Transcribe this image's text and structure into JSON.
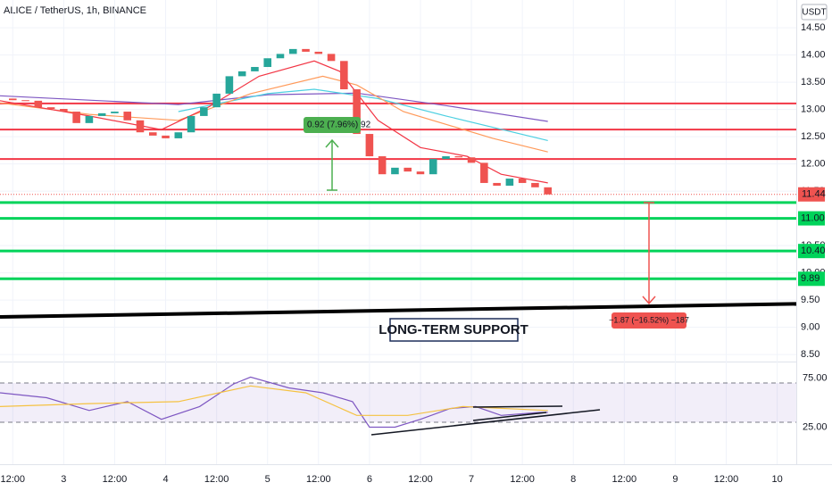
{
  "chart_data": {
    "type": "candlestick",
    "title": "ALICE / TetherUS, 1h, BINANCE",
    "currency": "USDT",
    "x": [
      9,
      12,
      15,
      18,
      21,
      24,
      27,
      30,
      33,
      36,
      39,
      42,
      45,
      48,
      51,
      54,
      57,
      60,
      63,
      66,
      69,
      72,
      75,
      78,
      81,
      84,
      87,
      90,
      93,
      96,
      99,
      102,
      105,
      108,
      111,
      114,
      117,
      120,
      123,
      126,
      129,
      132,
      135,
      138
    ],
    "values": [
      13.2,
      13.17,
      13.16,
      13.04,
      13.01,
      12.96,
      12.75,
      12.88,
      12.93,
      12.96,
      12.8,
      12.58,
      12.52,
      12.47,
      12.58,
      12.88,
      13.04,
      13.29,
      13.61,
      13.7,
      13.78,
      13.94,
      14.02,
      14.11,
      14.06,
      14.02,
      13.89,
      13.37,
      12.55,
      12.14,
      11.81,
      11.93,
      11.86,
      11.81,
      12.09,
      12.14,
      12.12,
      12.02,
      11.65,
      11.6,
      11.73,
      11.65,
      11.57,
      11.44
    ],
    "up_color": "#26a69a",
    "down_color": "#ef5350",
    "xlim": [
      9,
      196.5
    ],
    "xticks": [
      {
        "value": 12,
        "label": "12:00"
      },
      {
        "value": 24,
        "label": "3"
      },
      {
        "value": 36,
        "label": "12:00"
      },
      {
        "value": 48,
        "label": "4"
      },
      {
        "value": 60,
        "label": "12:00"
      },
      {
        "value": 72,
        "label": "5"
      },
      {
        "value": 84,
        "label": "12:00"
      },
      {
        "value": 96,
        "label": "6"
      },
      {
        "value": 108,
        "label": "12:00"
      },
      {
        "value": 120,
        "label": "7"
      },
      {
        "value": 132,
        "label": "12:00"
      },
      {
        "value": 144,
        "label": "8"
      },
      {
        "value": 156,
        "label": "12:00"
      },
      {
        "value": 168,
        "label": "9"
      },
      {
        "value": 180,
        "label": "12:00"
      },
      {
        "value": 192,
        "label": "10"
      }
    ],
    "ylim": [
      8.37,
      15.01
    ],
    "yticks": [
      {
        "value": 14.5,
        "label": "14.50"
      },
      {
        "value": 14,
        "label": "14.00"
      },
      {
        "value": 13.5,
        "label": "13.50"
      },
      {
        "value": 13,
        "label": "13.00"
      },
      {
        "value": 12.5,
        "label": "12.50"
      },
      {
        "value": 12,
        "label": "12.00"
      },
      {
        "value": 11.5,
        "label": "11.50"
      },
      {
        "value": 11,
        "label": "11.00"
      },
      {
        "value": 10.5,
        "label": "10.50"
      },
      {
        "value": 10,
        "label": "10.00"
      },
      {
        "value": 9.5,
        "label": "9.50"
      },
      {
        "value": 9,
        "label": "9.00"
      },
      {
        "value": 8.5,
        "label": "8.50"
      }
    ],
    "last_price": 11.44,
    "resistance_lines": [
      13.11,
      12.63,
      12.09
    ],
    "resistance_color": "#f23645",
    "support_lines": [
      {
        "value": 11.29
      },
      {
        "value": 11.0,
        "label": "11.00"
      },
      {
        "value": 10.4,
        "label": "10.40"
      },
      {
        "value": 9.89,
        "label": "9.89"
      }
    ],
    "support_color": "#00d35a",
    "long_term_support": {
      "start": 9.19,
      "end": 9.43,
      "label": "LONG-TERM SUPPORT"
    },
    "moving_averages": [
      {
        "color": "#7e57c2",
        "x": [
          9,
          30,
          51,
          72,
          93,
          114,
          138
        ],
        "values": [
          13.25,
          13.17,
          13.09,
          13.27,
          13.3,
          13.07,
          12.78
        ]
      },
      {
        "color": "#4dd0e1",
        "x": [
          51,
          72,
          83,
          98,
          114,
          138
        ],
        "values": [
          12.96,
          13.29,
          13.37,
          13.2,
          12.88,
          12.43
        ]
      },
      {
        "color": "#ff9a5a",
        "x": [
          9,
          30,
          51,
          68,
          85,
          93,
          104,
          125,
          138
        ],
        "values": [
          13.12,
          12.91,
          12.8,
          13.29,
          13.61,
          13.45,
          12.96,
          12.47,
          12.22
        ]
      },
      {
        "color": "#f23645",
        "x": [
          9,
          30,
          47,
          58,
          70,
          83,
          89,
          98,
          108,
          119,
          127,
          138
        ],
        "values": [
          13.16,
          12.88,
          12.63,
          13.04,
          13.61,
          13.89,
          13.7,
          12.8,
          12.3,
          12.14,
          11.81,
          11.65
        ]
      }
    ],
    "measure_up": "0.92 (7.96%) 92",
    "measure_down": "−1.87 (−16.52%) −187",
    "rsi": {
      "ylim": [
        91.8,
        -12.7
      ],
      "band": [
        30,
        70
      ],
      "yticks": [
        {
          "value": 75,
          "label": "75.00"
        },
        {
          "value": 25,
          "label": "25.00"
        }
      ],
      "series": [
        {
          "color": "#7e57c2",
          "x": [
            9,
            20,
            30,
            39,
            47,
            56,
            64,
            68,
            77,
            85,
            92,
            96,
            102,
            108,
            115,
            121,
            127,
            136,
            138
          ],
          "values": [
            60,
            55,
            42,
            51,
            33,
            46,
            69,
            76,
            65,
            60,
            51,
            25,
            25,
            33,
            44,
            46,
            37,
            40,
            40
          ]
        },
        {
          "color": "#f5c242",
          "x": [
            9,
            30,
            51,
            68,
            81,
            93,
            105,
            118,
            138
          ],
          "values": [
            46,
            49,
            51,
            67,
            60,
            37,
            37,
            46,
            42
          ]
        }
      ]
    }
  }
}
